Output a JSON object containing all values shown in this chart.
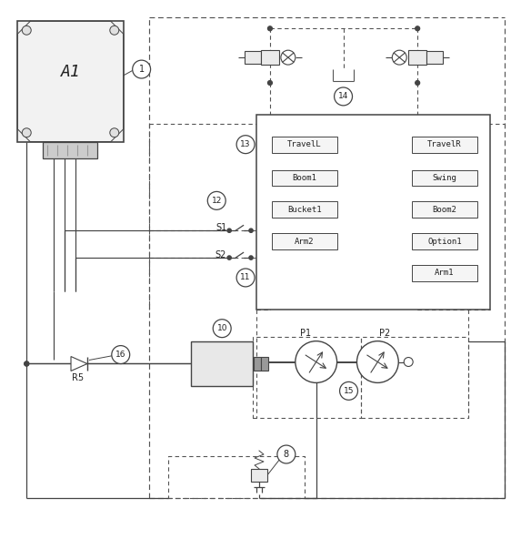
{
  "bg_color": "#ffffff",
  "line_color": "#444444",
  "dash_color": "#555555",
  "text_color": "#222222",
  "fig_width": 5.73,
  "fig_height": 5.92,
  "dpi": 100,
  "valve_left": [
    "TravelL",
    "Boom1",
    "Bucket1",
    "Arm2"
  ],
  "valve_right": [
    "TravelR",
    "Swing",
    "Boom2",
    "Option1"
  ],
  "valve_bottom": [
    "Arm1"
  ],
  "pump_labels": [
    "P1",
    "P2"
  ],
  "switch_labels": [
    "S1",
    "S2"
  ],
  "component_label": "A1",
  "component_label2": "R5",
  "numbered_labels": [
    "1",
    "8",
    "10",
    "11",
    "12",
    "13",
    "14",
    "15",
    "16"
  ]
}
